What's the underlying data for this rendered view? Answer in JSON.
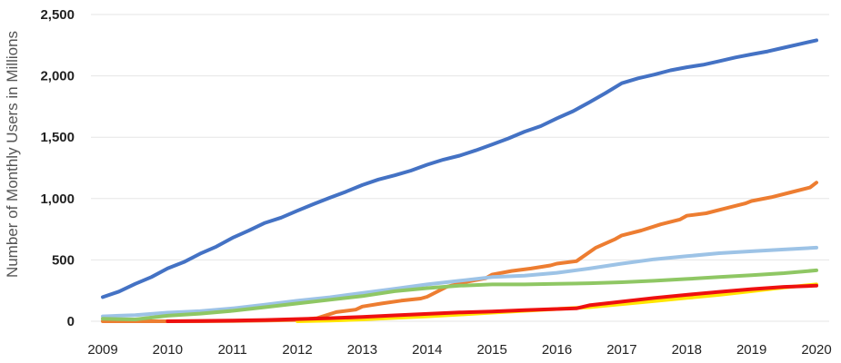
{
  "chart_data": {
    "type": "line",
    "title": "",
    "xlabel": "",
    "ylabel": "Number of Monthly Users in Millions",
    "xlim": [
      2008.9,
      2020.1
    ],
    "ylim": [
      0,
      2500
    ],
    "x_ticks": [
      "2009",
      "2010",
      "2011",
      "2012",
      "2013",
      "2014",
      "2015",
      "2016",
      "2017",
      "2018",
      "2019",
      "2020"
    ],
    "y_ticks": [
      "0",
      "500",
      "1,000",
      "1,500",
      "2,000",
      "2,500"
    ],
    "y_tick_values": [
      0,
      500,
      1000,
      1500,
      2000,
      2500
    ],
    "grid": "horizontal",
    "legend": "none",
    "series": [
      {
        "color": "#4472c4",
        "x": [
          2009.0,
          2009.25,
          2009.5,
          2009.75,
          2010.0,
          2010.25,
          2010.5,
          2010.75,
          2011.0,
          2011.25,
          2011.5,
          2011.75,
          2012.0,
          2012.25,
          2012.5,
          2012.75,
          2013.0,
          2013.25,
          2013.5,
          2013.75,
          2014.0,
          2014.25,
          2014.5,
          2014.75,
          2015.0,
          2015.25,
          2015.5,
          2015.75,
          2016.0,
          2016.25,
          2016.5,
          2016.75,
          2017.0,
          2017.25,
          2017.5,
          2017.75,
          2018.0,
          2018.25,
          2018.5,
          2018.75,
          2019.0,
          2019.25,
          2019.5,
          2019.75,
          2020.0
        ],
        "y": [
          197,
          242,
          305,
          360,
          431,
          482,
          550,
          608,
          680,
          739,
          802,
          845,
          901,
          955,
          1007,
          1056,
          1110,
          1155,
          1189,
          1228,
          1276,
          1317,
          1350,
          1393,
          1440,
          1490,
          1545,
          1590,
          1654,
          1712,
          1785,
          1860,
          1940,
          1980,
          2010,
          2045,
          2070,
          2090,
          2120,
          2150,
          2175,
          2200,
          2230,
          2260,
          2290
        ]
      },
      {
        "color": "#ed7d31",
        "x": [
          2009.0,
          2009.5,
          2010.0,
          2010.5,
          2011.0,
          2011.5,
          2012.0,
          2012.3,
          2012.6,
          2012.9,
          2013.0,
          2013.3,
          2013.6,
          2013.9,
          2014.0,
          2014.3,
          2014.6,
          2014.9,
          2015.0,
          2015.3,
          2015.6,
          2015.9,
          2016.0,
          2016.3,
          2016.6,
          2016.9,
          2017.0,
          2017.3,
          2017.6,
          2017.9,
          2018.0,
          2018.3,
          2018.6,
          2018.9,
          2019.0,
          2019.3,
          2019.6,
          2019.9,
          2020.0
        ],
        "y": [
          0,
          0,
          0,
          0,
          2,
          5,
          10,
          25,
          75,
          95,
          120,
          145,
          168,
          185,
          200,
          280,
          320,
          350,
          380,
          410,
          430,
          455,
          470,
          490,
          600,
          670,
          700,
          740,
          790,
          830,
          860,
          880,
          920,
          960,
          980,
          1010,
          1050,
          1090,
          1130
        ]
      },
      {
        "color": "#9dc3e6",
        "x": [
          2009.0,
          2009.5,
          2010.0,
          2010.5,
          2011.0,
          2011.5,
          2012.0,
          2012.5,
          2013.0,
          2013.5,
          2014.0,
          2014.5,
          2015.0,
          2015.5,
          2016.0,
          2016.5,
          2017.0,
          2017.5,
          2018.0,
          2018.5,
          2019.0,
          2019.5,
          2020.0
        ],
        "y": [
          40,
          50,
          70,
          82,
          105,
          135,
          168,
          195,
          230,
          265,
          300,
          330,
          360,
          372,
          395,
          430,
          470,
          505,
          530,
          555,
          570,
          585,
          600
        ]
      },
      {
        "color": "#8fc764",
        "x": [
          2009.0,
          2009.5,
          2010.0,
          2010.5,
          2011.0,
          2011.5,
          2012.0,
          2012.5,
          2013.0,
          2013.5,
          2014.0,
          2014.5,
          2015.0,
          2015.5,
          2016.0,
          2016.5,
          2017.0,
          2017.5,
          2018.0,
          2018.5,
          2019.0,
          2019.5,
          2020.0
        ],
        "y": [
          20,
          15,
          45,
          62,
          85,
          115,
          145,
          175,
          205,
          245,
          270,
          290,
          300,
          300,
          305,
          310,
          318,
          330,
          345,
          360,
          375,
          392,
          415
        ]
      },
      {
        "color": "#ffe600",
        "x": [
          2012.0,
          2012.5,
          2013.0,
          2013.5,
          2014.0,
          2014.5,
          2015.0,
          2015.5,
          2016.0,
          2016.5,
          2017.0,
          2017.5,
          2018.0,
          2018.5,
          2019.0,
          2019.5,
          2020.0
        ],
        "y": [
          0,
          5,
          15,
          28,
          40,
          55,
          70,
          85,
          100,
          115,
          140,
          165,
          190,
          215,
          245,
          275,
          300
        ]
      },
      {
        "color": "#ee1010",
        "x": [
          2010.0,
          2010.5,
          2011.0,
          2011.5,
          2012.0,
          2012.5,
          2013.0,
          2013.5,
          2014.0,
          2014.5,
          2015.0,
          2015.5,
          2016.0,
          2016.3,
          2016.5,
          2017.0,
          2017.5,
          2018.0,
          2018.5,
          2019.0,
          2019.5,
          2020.0
        ],
        "y": [
          0,
          3,
          6,
          10,
          18,
          25,
          35,
          48,
          60,
          72,
          80,
          90,
          100,
          105,
          130,
          160,
          190,
          215,
          240,
          262,
          280,
          290
        ]
      }
    ]
  }
}
